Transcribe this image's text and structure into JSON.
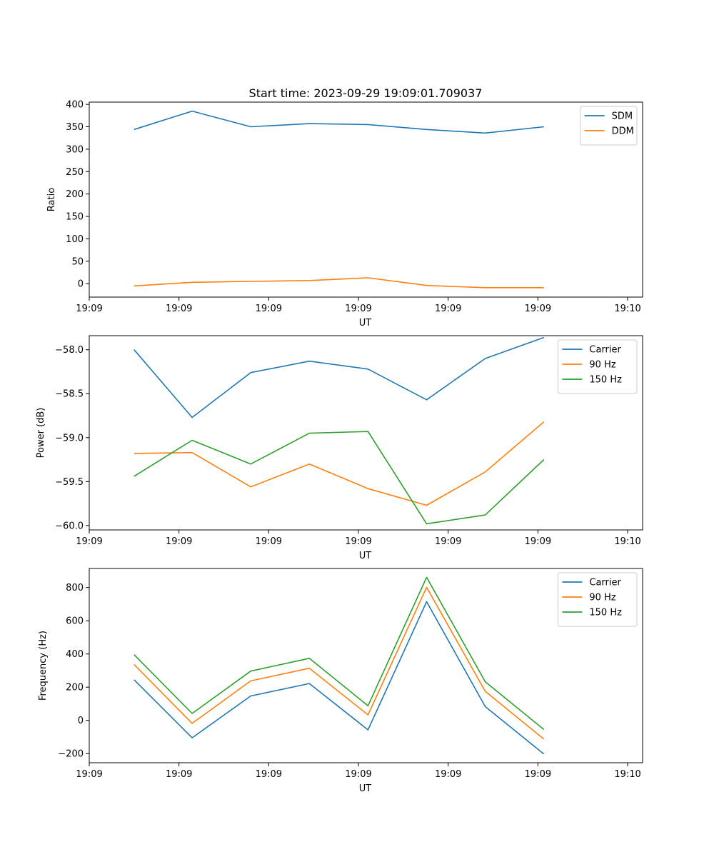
{
  "figure_title": "Start time: 2023-09-29 19:09:01.709037",
  "chart_data": [
    {
      "type": "line",
      "ylabel": "Ratio",
      "xlabel": "UT",
      "xlim": [
        0,
        9.25
      ],
      "ylim": [
        -30,
        405
      ],
      "xticks": [
        0,
        1.5,
        3,
        4.5,
        6,
        7.5,
        9
      ],
      "xtick_labels": [
        "19:09",
        "19:09",
        "19:09",
        "19:09",
        "19:09",
        "19:09",
        "19:10"
      ],
      "yticks": [
        0,
        50,
        100,
        150,
        200,
        250,
        300,
        350,
        400
      ],
      "ytick_labels": [
        "0",
        "50",
        "100",
        "150",
        "200",
        "250",
        "300",
        "350",
        "400"
      ],
      "legend_position": "top-right",
      "x": [
        0.75,
        1.72,
        2.7,
        3.68,
        4.66,
        5.64,
        6.62,
        7.6
      ],
      "series": [
        {
          "name": "SDM",
          "color": "#1f77b4",
          "values": [
            344,
            385,
            350,
            357,
            355,
            344,
            336,
            350
          ]
        },
        {
          "name": "DDM",
          "color": "#ff7f0e",
          "values": [
            -5,
            3,
            5,
            7,
            13,
            -4,
            -9,
            -9
          ]
        }
      ]
    },
    {
      "type": "line",
      "ylabel": "Power (dB)",
      "xlabel": "UT",
      "xlim": [
        0,
        9.25
      ],
      "ylim": [
        -60.05,
        -57.84
      ],
      "xticks": [
        0,
        1.5,
        3,
        4.5,
        6,
        7.5,
        9
      ],
      "xtick_labels": [
        "19:09",
        "19:09",
        "19:09",
        "19:09",
        "19:09",
        "19:09",
        "19:10"
      ],
      "yticks": [
        -60.0,
        -59.5,
        -59.0,
        -58.5,
        -58.0
      ],
      "ytick_labels": [
        "−60.0",
        "−59.5",
        "−59.0",
        "−58.5",
        "−58.0"
      ],
      "legend_position": "top-right",
      "x": [
        0.75,
        1.72,
        2.7,
        3.68,
        4.66,
        5.64,
        6.62,
        7.6
      ],
      "series": [
        {
          "name": "Carrier",
          "color": "#1f77b4",
          "values": [
            -58.0,
            -58.77,
            -58.26,
            -58.13,
            -58.22,
            -58.57,
            -58.1,
            -57.86
          ]
        },
        {
          "name": "90 Hz",
          "color": "#ff7f0e",
          "values": [
            -59.18,
            -59.17,
            -59.56,
            -59.3,
            -59.58,
            -59.77,
            -59.39,
            -58.82
          ]
        },
        {
          "name": "150 Hz",
          "color": "#2ca02c",
          "values": [
            -59.44,
            -59.03,
            -59.3,
            -58.95,
            -58.93,
            -59.98,
            -59.88,
            -59.25
          ]
        }
      ]
    },
    {
      "type": "line",
      "ylabel": "Frequency (Hz)",
      "xlabel": "UT",
      "xlim": [
        0,
        9.25
      ],
      "ylim": [
        -255,
        915
      ],
      "xticks": [
        0,
        1.5,
        3,
        4.5,
        6,
        7.5,
        9
      ],
      "xtick_labels": [
        "19:09",
        "19:09",
        "19:09",
        "19:09",
        "19:09",
        "19:09",
        "19:10"
      ],
      "yticks": [
        -200,
        0,
        200,
        400,
        600,
        800
      ],
      "ytick_labels": [
        "−200",
        "0",
        "200",
        "400",
        "600",
        "800"
      ],
      "legend_position": "top-right",
      "x": [
        0.75,
        1.72,
        2.7,
        3.68,
        4.66,
        5.64,
        6.62,
        7.6
      ],
      "series": [
        {
          "name": "Carrier",
          "color": "#1f77b4",
          "values": [
            245,
            -105,
            147,
            222,
            -57,
            715,
            83,
            -203
          ]
        },
        {
          "name": "90 Hz",
          "color": "#ff7f0e",
          "values": [
            337,
            -18,
            238,
            314,
            33,
            802,
            175,
            -113
          ]
        },
        {
          "name": "150 Hz",
          "color": "#2ca02c",
          "values": [
            396,
            42,
            297,
            374,
            88,
            862,
            233,
            -55
          ]
        }
      ]
    }
  ]
}
